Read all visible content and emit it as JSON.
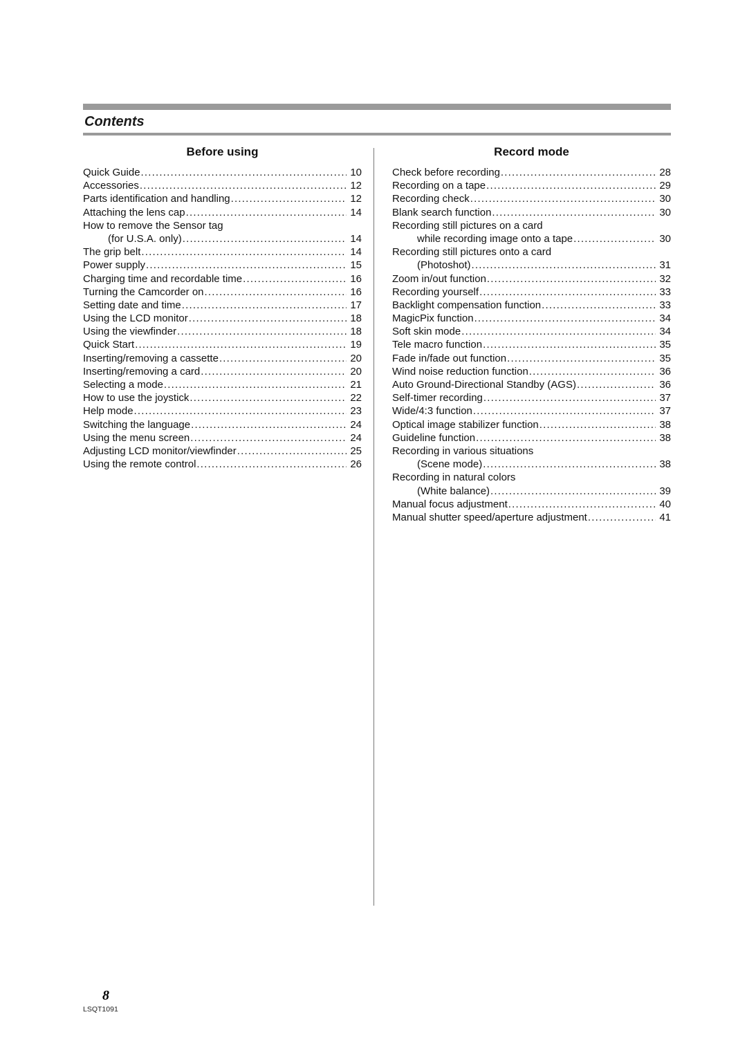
{
  "page": {
    "title": "Contents",
    "pageNumber": "8",
    "docCode": "LSQT1091"
  },
  "style": {
    "accentBarColor": "#9a9a9a",
    "textColor": "#111111",
    "dividerColor": "#777777",
    "background": "#ffffff",
    "headingFontSize": 17,
    "bodyFontSize": 15,
    "titleFontSize": 20
  },
  "sections": {
    "left": {
      "heading": "Before using",
      "items": [
        {
          "label": "Quick Guide",
          "page": "10"
        },
        {
          "label": "Accessories",
          "page": "12"
        },
        {
          "label": "Parts identification and handling",
          "page": "12"
        },
        {
          "label": "Attaching the lens cap",
          "page": "14"
        },
        {
          "label": "How to remove the Sensor tag",
          "cont": true
        },
        {
          "label": "(for U.S.A. only)",
          "page": "14",
          "indent": true
        },
        {
          "label": "The grip belt",
          "page": "14"
        },
        {
          "label": "Power supply",
          "page": "15"
        },
        {
          "label": "Charging time and recordable time",
          "page": "16"
        },
        {
          "label": "Turning the Camcorder on",
          "page": "16"
        },
        {
          "label": "Setting date and time",
          "page": "17"
        },
        {
          "label": "Using the LCD monitor",
          "page": "18"
        },
        {
          "label": "Using the viewfinder",
          "page": "18"
        },
        {
          "label": "Quick Start",
          "page": "19"
        },
        {
          "label": "Inserting/removing a cassette",
          "page": "20"
        },
        {
          "label": "Inserting/removing a card",
          "page": "20"
        },
        {
          "label": "Selecting a mode",
          "page": "21"
        },
        {
          "label": "How to use the joystick",
          "page": "22"
        },
        {
          "label": "Help mode",
          "page": "23"
        },
        {
          "label": "Switching the language",
          "page": "24"
        },
        {
          "label": "Using the menu screen",
          "page": "24"
        },
        {
          "label": "Adjusting LCD monitor/viewfinder",
          "page": "25"
        },
        {
          "label": "Using the remote control",
          "page": "26"
        }
      ]
    },
    "right": {
      "heading": "Record mode",
      "items": [
        {
          "label": "Check before recording",
          "page": "28"
        },
        {
          "label": "Recording on a tape",
          "page": "29"
        },
        {
          "label": "Recording check",
          "page": "30"
        },
        {
          "label": "Blank search function",
          "page": "30"
        },
        {
          "label": "Recording still pictures on a card",
          "cont": true
        },
        {
          "label": "while recording image onto a tape",
          "page": "30",
          "indent": true
        },
        {
          "label": "Recording still pictures onto a card",
          "cont": true
        },
        {
          "label": "(Photoshot)",
          "page": "31",
          "indent": true
        },
        {
          "label": "Zoom in/out function",
          "page": "32"
        },
        {
          "label": "Recording yourself",
          "page": "33"
        },
        {
          "label": "Backlight compensation function",
          "page": "33"
        },
        {
          "label": "MagicPix function",
          "page": "34"
        },
        {
          "label": "Soft skin mode",
          "page": "34"
        },
        {
          "label": "Tele macro function",
          "page": "35"
        },
        {
          "label": "Fade in/fade out function",
          "page": "35"
        },
        {
          "label": "Wind noise reduction function",
          "page": "36"
        },
        {
          "label": "Auto Ground-Directional Standby (AGS)",
          "page": "36"
        },
        {
          "label": "Self-timer recording",
          "page": "37"
        },
        {
          "label": "Wide/4:3 function",
          "page": "37"
        },
        {
          "label": "Optical image stabilizer function",
          "page": "38"
        },
        {
          "label": "Guideline function",
          "page": "38"
        },
        {
          "label": "Recording in various situations",
          "cont": true
        },
        {
          "label": "(Scene mode)",
          "page": "38",
          "indent": true
        },
        {
          "label": "Recording in natural colors",
          "cont": true
        },
        {
          "label": "(White balance)",
          "page": "39",
          "indent": true
        },
        {
          "label": "Manual focus adjustment",
          "page": "40"
        },
        {
          "label": "Manual shutter speed/aperture adjustment",
          "page": "41"
        }
      ]
    }
  }
}
